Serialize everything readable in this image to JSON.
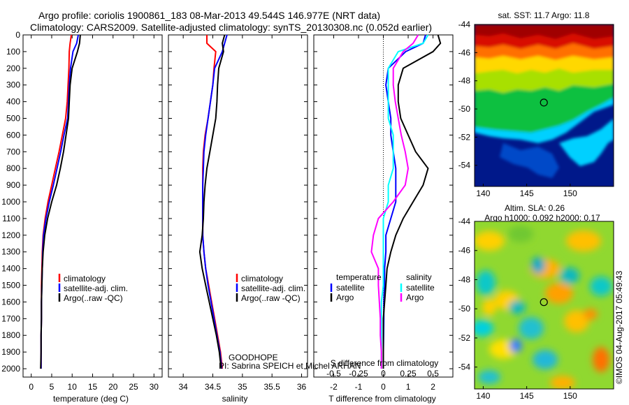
{
  "header": {
    "line1": "Argo profile: coriolis 1900861_183 08-Mar-2013 49.544S 146.977E (NRT data)",
    "line2": "Climatology: CARS2009. Satellite-adjusted climatology: synTS_20130308.nc (0.052d earlier)"
  },
  "panels": {
    "temperature": {
      "xlabel": "temperature (deg C)",
      "xticks": [
        0,
        5,
        10,
        15,
        20,
        25,
        30
      ],
      "xlim": [
        -2,
        32
      ]
    },
    "salinity": {
      "xlabel": "salinity",
      "xticks": [
        34,
        34.5,
        35,
        35.5,
        36
      ],
      "xlim": [
        33.75,
        36.1
      ]
    },
    "difference": {
      "xlabel": "T difference from climatology",
      "xlabel2": "S difference from climatology",
      "xticks": [
        -2,
        -1,
        0,
        1,
        2
      ],
      "xticks2": [
        -0.5,
        -0.25,
        0,
        0.25,
        0.5
      ],
      "xlim": [
        -2.8,
        2.8
      ]
    }
  },
  "yaxis": {
    "ticks": [
      0,
      100,
      200,
      300,
      400,
      500,
      600,
      700,
      800,
      900,
      1000,
      1100,
      1200,
      1300,
      1400,
      1500,
      1600,
      1700,
      1800,
      1900,
      2000
    ],
    "ylim": [
      0,
      2050
    ]
  },
  "legend_profiles": [
    "climatology",
    "satellite-adj. clim.",
    "Argo(..raw -QC)"
  ],
  "legend_diff": {
    "temperature_header": "temperature",
    "salinity_header": "salinity",
    "temperature_items": [
      "satellite",
      "Argo"
    ],
    "salinity_items": [
      "satellite",
      "Argo"
    ]
  },
  "program": {
    "name": "GOODHOPE",
    "pi": "PI: Sabrina SPEICH et Michel ARHAN"
  },
  "maps": {
    "sst_title": "sat. SST: 11.7 Argo: 11.8",
    "sla_title1": "Altim. SLA: 0.26",
    "sla_title2": "Argo h1000: 0.092 h2000: 0.17",
    "lat_ticks": [
      -44,
      -46,
      -48,
      -50,
      -52,
      -54
    ],
    "lon_ticks": [
      140,
      145,
      150
    ]
  },
  "credit": "©IMOS 04-Aug-2017 05:49:43",
  "colors": {
    "climatology": "#ff0000",
    "satellite": "#0000ff",
    "argo": "#000000",
    "sal_satellite": "#00ffff",
    "sal_argo": "#ff00ff"
  },
  "chart_data": [
    {
      "type": "line",
      "title": "",
      "xlabel": "temperature (deg C)",
      "ylabel": "",
      "xlim": [
        -2,
        32
      ],
      "ylim": [
        2050,
        0
      ],
      "series": [
        {
          "name": "climatology",
          "x": [
            9.8,
            9.5,
            9.3,
            9.2,
            9.0,
            8.8,
            8.4,
            7.6,
            6.8,
            5.9,
            5.0,
            4.1,
            3.4,
            2.9,
            2.7,
            2.6,
            2.5,
            2.5,
            2.5,
            2.4,
            2.4,
            2.4
          ],
          "y": [
            0,
            50,
            100,
            200,
            300,
            400,
            500,
            600,
            700,
            800,
            900,
            1000,
            1100,
            1200,
            1300,
            1400,
            1500,
            1600,
            1700,
            1800,
            1900,
            2000
          ]
        },
        {
          "name": "satellite-adj. clim.",
          "x": [
            11.5,
            11.1,
            10.2,
            9.6,
            9.3,
            9.1,
            8.9,
            8.0,
            7.2,
            6.3,
            5.4,
            4.4,
            3.6,
            3.0,
            2.8,
            2.7,
            2.6,
            2.5,
            2.5,
            2.4,
            2.4,
            2.4
          ],
          "y": [
            0,
            50,
            100,
            200,
            300,
            400,
            500,
            600,
            700,
            800,
            900,
            1000,
            1100,
            1200,
            1300,
            1400,
            1500,
            1600,
            1700,
            1800,
            1900,
            2000
          ]
        },
        {
          "name": "Argo(..raw -QC)",
          "x": [
            12.0,
            11.8,
            11.3,
            10.0,
            9.5,
            9.3,
            9.1,
            8.5,
            7.9,
            7.1,
            6.2,
            5.0,
            4.0,
            3.3,
            2.9,
            2.7,
            2.6,
            2.5,
            2.5,
            2.4,
            2.4,
            2.3
          ],
          "y": [
            0,
            50,
            100,
            200,
            300,
            400,
            500,
            600,
            700,
            800,
            900,
            1000,
            1100,
            1200,
            1300,
            1400,
            1500,
            1600,
            1700,
            1800,
            1900,
            2000
          ]
        }
      ]
    },
    {
      "type": "line",
      "title": "",
      "xlabel": "salinity",
      "ylabel": "",
      "xlim": [
        33.75,
        36.1
      ],
      "ylim": [
        2050,
        0
      ],
      "series": [
        {
          "name": "climatology",
          "x": [
            34.4,
            34.4,
            34.55,
            34.52,
            34.5,
            34.46,
            34.42,
            34.37,
            34.34,
            34.33,
            34.33,
            34.33,
            34.33,
            34.33,
            34.35,
            34.38,
            34.43,
            34.48,
            34.53,
            34.58,
            34.63,
            34.66
          ],
          "y": [
            0,
            50,
            100,
            200,
            300,
            400,
            500,
            600,
            700,
            800,
            900,
            1000,
            1100,
            1200,
            1300,
            1400,
            1500,
            1600,
            1700,
            1800,
            1900,
            2000
          ]
        },
        {
          "name": "satellite-adj. clim.",
          "x": [
            34.74,
            34.7,
            34.66,
            34.53,
            34.5,
            34.46,
            34.42,
            34.38,
            34.35,
            34.34,
            34.33,
            34.33,
            34.33,
            34.33,
            34.35,
            34.38,
            34.42,
            34.47,
            34.52,
            34.57,
            34.62,
            34.65
          ],
          "y": [
            0,
            50,
            100,
            200,
            300,
            400,
            500,
            600,
            700,
            800,
            900,
            1000,
            1100,
            1200,
            1300,
            1400,
            1500,
            1600,
            1700,
            1800,
            1900,
            2000
          ]
        },
        {
          "name": "Argo(..raw -QC)",
          "x": [
            34.7,
            34.66,
            34.68,
            34.6,
            34.58,
            34.57,
            34.55,
            34.5,
            34.45,
            34.4,
            34.37,
            34.35,
            34.34,
            34.32,
            34.28,
            34.32,
            34.38,
            34.44,
            34.5,
            34.56,
            34.61,
            34.64
          ],
          "y": [
            0,
            50,
            100,
            200,
            300,
            400,
            500,
            600,
            700,
            800,
            900,
            1000,
            1100,
            1200,
            1300,
            1400,
            1500,
            1600,
            1700,
            1800,
            1900,
            2000
          ]
        }
      ]
    },
    {
      "type": "line",
      "title": "",
      "xlabel": "T difference from climatology",
      "xlabel2": "S difference from climatology",
      "ylabel": "",
      "xlim": [
        -2.8,
        2.8
      ],
      "ylim": [
        2050,
        0
      ],
      "series": [
        {
          "name": "temperature satellite",
          "x": [
            1.7,
            1.6,
            0.9,
            0.2,
            0.1,
            0.2,
            0.3,
            0.3,
            0.4,
            0.5,
            0.5,
            0.5,
            0.3,
            0.1,
            0.1,
            0.05,
            0.05,
            0.02,
            0.02,
            0.01,
            0.0,
            0.0
          ],
          "y": [
            0,
            50,
            100,
            200,
            300,
            400,
            500,
            600,
            700,
            800,
            900,
            1000,
            1100,
            1200,
            1300,
            1400,
            1500,
            1600,
            1700,
            1800,
            1900,
            2000
          ]
        },
        {
          "name": "temperature Argo",
          "x": [
            2.2,
            2.3,
            2.0,
            0.8,
            0.6,
            0.6,
            0.7,
            1.0,
            1.3,
            1.8,
            1.6,
            1.2,
            0.8,
            0.5,
            0.3,
            0.15,
            0.1,
            0.05,
            0.0,
            0.0,
            0.0,
            0.0
          ],
          "y": [
            0,
            50,
            100,
            200,
            300,
            400,
            500,
            600,
            700,
            800,
            900,
            1000,
            1100,
            1200,
            1300,
            1400,
            1500,
            1600,
            1700,
            1800,
            1900,
            2000
          ]
        },
        {
          "name": "salinity satellite",
          "x": [
            0.45,
            0.4,
            0.15,
            0.05,
            0.05,
            0.05,
            0.05,
            0.1,
            0.1,
            0.1,
            0.05,
            0.05,
            0.0,
            0.0,
            0.0,
            0.0,
            0.0,
            -0.02,
            -0.02,
            -0.02,
            -0.02,
            -0.02
          ],
          "y": [
            0,
            50,
            100,
            200,
            300,
            400,
            500,
            600,
            700,
            800,
            900,
            1000,
            1100,
            1200,
            1300,
            1400,
            1500,
            1600,
            1700,
            1800,
            1900,
            2000
          ]
        },
        {
          "name": "salinity Argo",
          "x": [
            0.35,
            0.3,
            0.2,
            0.1,
            0.1,
            0.12,
            0.15,
            0.18,
            0.22,
            0.25,
            0.22,
            0.1,
            -0.05,
            -0.1,
            -0.12,
            -0.05,
            -0.05,
            -0.04,
            -0.03,
            -0.03,
            -0.02,
            -0.02
          ],
          "y": [
            0,
            50,
            100,
            200,
            300,
            400,
            500,
            600,
            700,
            800,
            900,
            1000,
            1100,
            1200,
            1300,
            1400,
            1500,
            1600,
            1700,
            1800,
            1900,
            2000
          ]
        }
      ]
    },
    {
      "type": "heatmap",
      "title": "sat. SST: 11.7 Argo: 11.8",
      "xlabel": "",
      "ylabel": "",
      "xlim": [
        139,
        155
      ],
      "ylim": [
        -55.5,
        -44
      ],
      "point": {
        "lon": 146.977,
        "lat": -49.544
      }
    },
    {
      "type": "heatmap",
      "title": "Altim. SLA: 0.26",
      "subtitle": "Argo h1000: 0.092 h2000: 0.17",
      "xlabel": "",
      "ylabel": "",
      "xlim": [
        139,
        155
      ],
      "ylim": [
        -55.5,
        -44
      ],
      "point": {
        "lon": 146.977,
        "lat": -49.544
      }
    }
  ]
}
